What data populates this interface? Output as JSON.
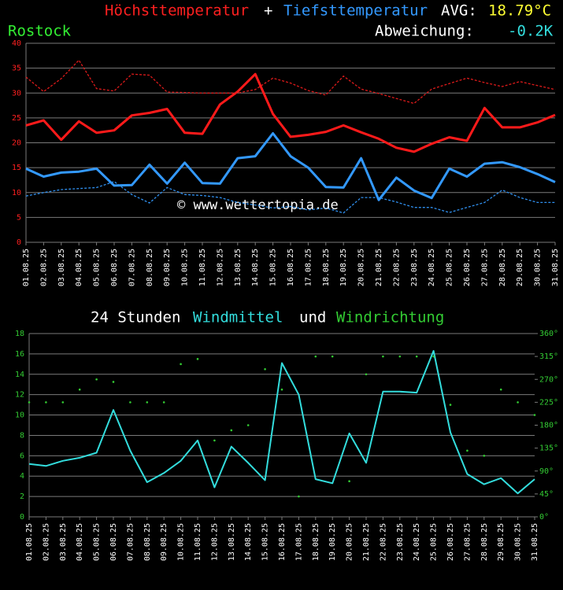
{
  "chart_data": [
    {
      "type": "line",
      "title_sep": "+",
      "summary_label": "AVG:",
      "summary_value": "18.79°C",
      "location": "Rostock",
      "deviation_label": "Abweichung:",
      "deviation_value": "-0.2K",
      "watermark": "© www.wettertopia.de",
      "categories": [
        "01.08.25",
        "02.08.25",
        "03.08.25",
        "04.08.25",
        "05.08.25",
        "06.08.25",
        "07.08.25",
        "08.08.25",
        "09.08.25",
        "10.08.25",
        "11.08.25",
        "12.08.25",
        "13.08.25",
        "14.08.25",
        "15.08.25",
        "16.08.25",
        "17.08.25",
        "18.08.25",
        "19.08.25",
        "20.08.25",
        "21.08.25",
        "22.08.25",
        "23.08.25",
        "24.08.25",
        "25.08.25",
        "26.08.25",
        "27.08.25",
        "28.08.25",
        "29.08.25",
        "30.08.25",
        "31.08.25"
      ],
      "series": [
        {
          "name": "Höchsttemperatur",
          "color": "#ff1a1a",
          "values": [
            23.5,
            24.5,
            20.6,
            24.3,
            22.0,
            22.5,
            25.5,
            26.0,
            26.8,
            22.0,
            21.8,
            27.7,
            30.3,
            33.8,
            25.8,
            21.2,
            21.6,
            22.2,
            23.5,
            22.1,
            20.8,
            19.0,
            18.2,
            19.8,
            21.1,
            20.4,
            27.0,
            23.1,
            23.1,
            24.1,
            25.6
          ]
        },
        {
          "color": "#dd1a1a",
          "dashed": true,
          "values": [
            33.2,
            30.3,
            32.9,
            36.6,
            30.9,
            30.4,
            33.8,
            33.6,
            30.2,
            30.1,
            30.0,
            30.0,
            30.0,
            30.7,
            33.0,
            32.0,
            30.5,
            29.6,
            33.4,
            30.8,
            29.9,
            28.9,
            27.9,
            30.8,
            31.9,
            33.0,
            32.1,
            31.3,
            32.3,
            31.5,
            30.7
          ]
        },
        {
          "name": "Tiefsttemperatur",
          "color": "#3399ff",
          "values": [
            14.8,
            13.2,
            14.0,
            14.2,
            14.8,
            11.4,
            11.5,
            15.6,
            11.8,
            16.0,
            11.9,
            11.8,
            16.9,
            17.3,
            21.9,
            17.3,
            15.0,
            11.1,
            11.0,
            16.9,
            8.5,
            13.0,
            10.4,
            8.9,
            14.8,
            13.2,
            15.8,
            16.1,
            15.1,
            13.7,
            12.1
          ]
        },
        {
          "color": "#2f8fee",
          "dashed": true,
          "values": [
            9.3,
            10.0,
            10.6,
            10.8,
            11.0,
            12.2,
            9.6,
            7.9,
            11.0,
            9.6,
            9.4,
            9.0,
            8.0,
            7.5,
            6.9,
            7.2,
            6.5,
            6.9,
            5.9,
            9.0,
            9.0,
            8.1,
            7.0,
            7.0,
            6.0,
            7.0,
            8.0,
            10.5,
            9.0,
            8.0,
            8.0
          ]
        }
      ],
      "ylim": [
        0,
        40
      ],
      "yticks": [
        0,
        5,
        10,
        15,
        20,
        25,
        30,
        35,
        40
      ],
      "grid": true
    },
    {
      "type": "line",
      "title": "24 Stunden",
      "title_join": "und",
      "categories": [
        "01.08.25",
        "02.08.25",
        "03.08.25",
        "04.08.25",
        "05.08.25",
        "06.08.25",
        "07.08.25",
        "08.08.25",
        "09.08.25",
        "10.08.25",
        "11.08.25",
        "12.08.25",
        "13.08.25",
        "14.08.25",
        "15.08.25",
        "16.08.25",
        "17.08.25",
        "18.08.25",
        "19.08.25",
        "20.08.25",
        "21.08.25",
        "22.08.25",
        "23.08.25",
        "24.08.25",
        "25.08.25",
        "26.08.25",
        "27.08.25",
        "28.08.25",
        "29.08.25",
        "30.08.25",
        "31.08.25"
      ],
      "series": [
        {
          "name": "Windmittel",
          "color": "#33dddd",
          "values": [
            5.2,
            5.0,
            5.5,
            5.8,
            6.3,
            10.5,
            6.5,
            3.4,
            4.3,
            5.5,
            7.5,
            2.9,
            6.9,
            5.3,
            3.6,
            15.1,
            12.0,
            3.7,
            3.3,
            8.2,
            5.3,
            12.3,
            12.3,
            12.2,
            16.3,
            8.3,
            4.2,
            3.2,
            3.8,
            2.3,
            3.7
          ]
        },
        {
          "name": "Windrichtung",
          "color": "#33cc33",
          "axis": "y2",
          "marker": "dot",
          "values": [
            225,
            225,
            225,
            250,
            270,
            265,
            225,
            225,
            225,
            300,
            310,
            150,
            170,
            180,
            290,
            250,
            40,
            315,
            315,
            70,
            280,
            315,
            315,
            315,
            315,
            220,
            130,
            120,
            250,
            225,
            200
          ]
        }
      ],
      "ylim": [
        0,
        18
      ],
      "yticks": [
        0,
        2,
        4,
        6,
        8,
        10,
        12,
        14,
        16,
        18
      ],
      "y2lim": [
        0,
        360
      ],
      "y2ticks": [
        {
          "value": 0,
          "label": "0°"
        },
        {
          "value": 45,
          "label": "45°"
        },
        {
          "value": 90,
          "label": "90°"
        },
        {
          "value": 135,
          "label": "135°"
        },
        {
          "value": 180,
          "label": "180°"
        },
        {
          "value": 225,
          "label": "225°"
        },
        {
          "value": 270,
          "label": "270°"
        },
        {
          "value": 315,
          "label": "315°"
        },
        {
          "value": 360,
          "label": "360°"
        }
      ],
      "grid": true
    }
  ]
}
